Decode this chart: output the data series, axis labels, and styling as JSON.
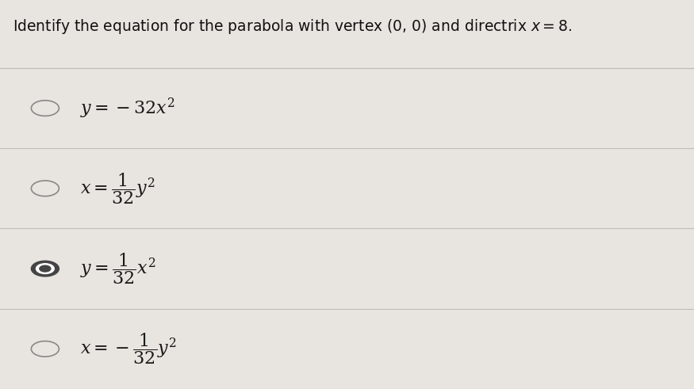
{
  "title": "Identify the equation for the parabola with vertex (0, 0) and directrix $x = 8$.",
  "options": [
    {
      "label": "$y=-32x^2$",
      "selected": false
    },
    {
      "label": "$x=\\dfrac{1}{32}y^2$",
      "selected": false
    },
    {
      "label": "$y=\\dfrac{1}{32}x^2$",
      "selected": true
    },
    {
      "label": "$x=-\\dfrac{1}{32}y^2$",
      "selected": false
    }
  ],
  "bg_color": "#d8d4ce",
  "panel_color": "#e8e5e0",
  "text_color": "#1a1a1a",
  "title_color": "#111111",
  "circle_edge_color": "#888888",
  "circle_bg": "#e8e5e0",
  "selected_dot_color": "#444444",
  "line_color": "#c0bcb7",
  "title_fontsize": 13.5,
  "option_fontsize": 16,
  "figwidth": 8.75,
  "figheight": 4.91,
  "dpi": 100
}
